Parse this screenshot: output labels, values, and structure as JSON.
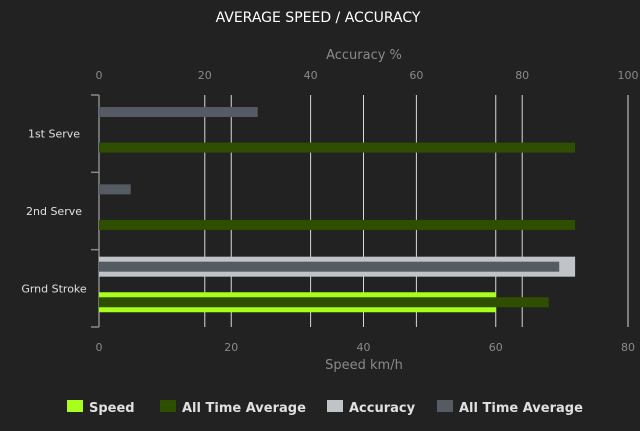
{
  "chart_data": {
    "type": "bar",
    "orientation": "horizontal",
    "title": "AVERAGE SPEED / ACCURACY",
    "categories": [
      "1st Serve",
      "2nd Serve",
      "Grnd Stroke"
    ],
    "top_axis": {
      "label": "Accuracy %",
      "range": [
        0,
        100
      ],
      "ticks": [
        0,
        20,
        40,
        60,
        80,
        100
      ]
    },
    "bottom_axis": {
      "label": "Speed km/h",
      "range": [
        0,
        80
      ],
      "ticks": [
        0,
        20,
        40,
        60,
        80
      ]
    },
    "grid": true,
    "legend_position": "bottom",
    "series": [
      {
        "name": "Speed",
        "axis": "speed",
        "color": "#a8ff1e",
        "values": [
          0,
          0,
          60
        ]
      },
      {
        "name": "All Time Average",
        "axis": "speed",
        "color": "#2f4f00",
        "values": [
          72,
          72,
          68
        ]
      },
      {
        "name": "Accuracy",
        "axis": "accuracy",
        "color": "#c0c4c8",
        "values": [
          0,
          0,
          90
        ]
      },
      {
        "name": "All Time Average",
        "axis": "accuracy",
        "color": "#555b63",
        "values": [
          30,
          6,
          87
        ]
      }
    ]
  }
}
